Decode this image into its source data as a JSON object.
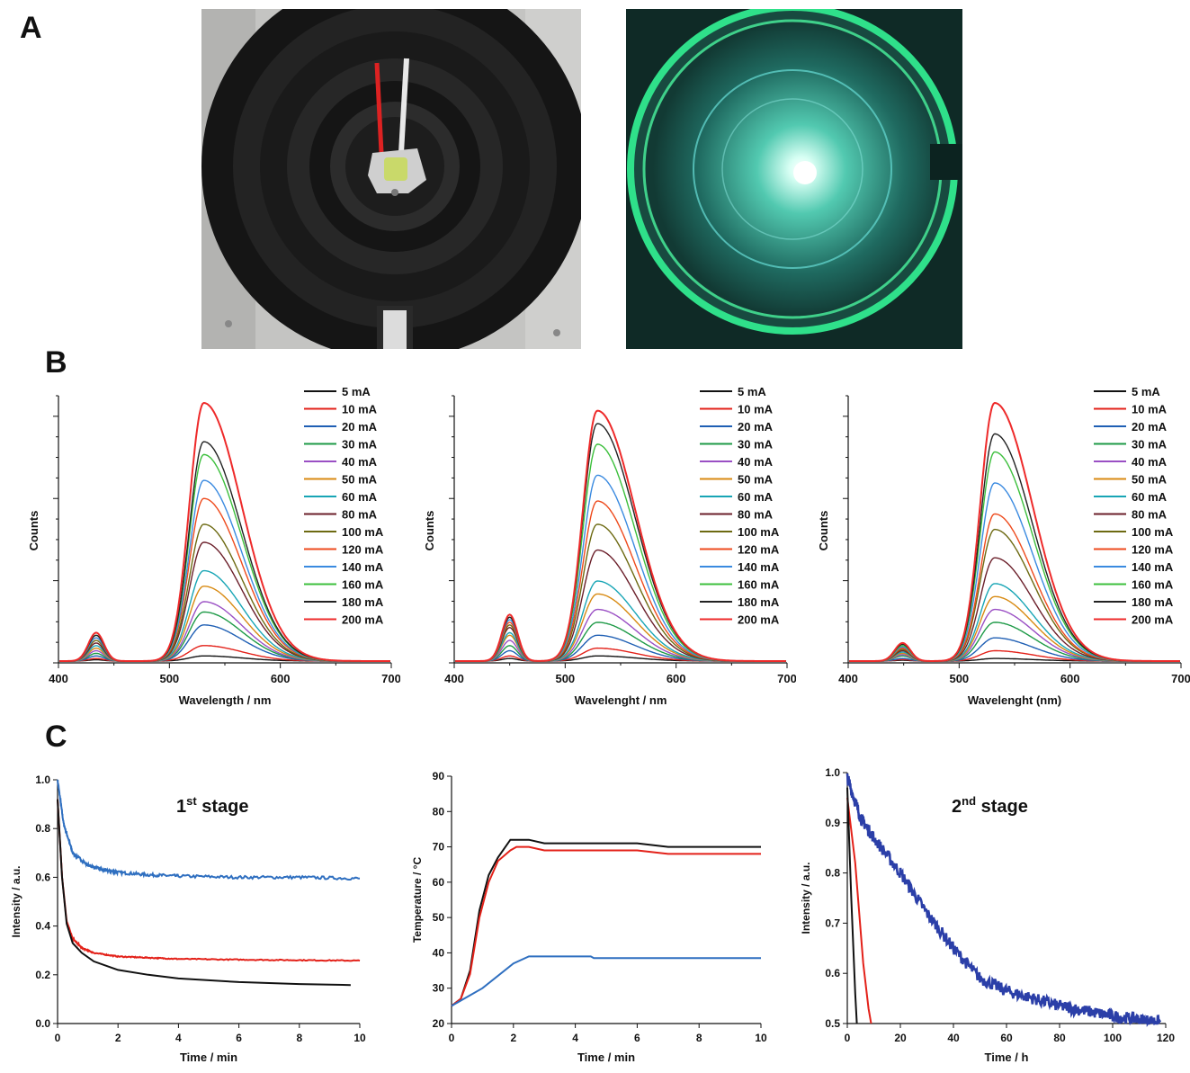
{
  "panels": {
    "a": "A",
    "b": "B",
    "c": "C"
  },
  "photos": {
    "left": {
      "name": "led-in-reactor-photo",
      "colors": {
        "housing": "#1a1a1a",
        "led": "#c9d96a",
        "bench": "#bdbdbd"
      }
    },
    "right": {
      "name": "reactor-illuminated-photo",
      "colors": {
        "glow": "#2fe08a",
        "core": "#ffffff",
        "background": "#0f2a26"
      }
    }
  },
  "chart_data": [
    {
      "id": "b1",
      "type": "line",
      "xlabel": "Wavelength / nm",
      "ylabel": "Counts",
      "xlim": [
        400,
        700
      ],
      "xticks": [
        400,
        500,
        600,
        700
      ],
      "peak1_nm": 434,
      "peak2_nm": 531,
      "legend_position": "top-right",
      "series": [
        {
          "name": "5 mA",
          "color": "#111111",
          "peak": 0.02,
          "blue": 0.005
        },
        {
          "name": "10 mA",
          "color": "#e32119",
          "peak": 0.06,
          "blue": 0.01
        },
        {
          "name": "20 mA",
          "color": "#1f5fb4",
          "peak": 0.14,
          "blue": 0.02
        },
        {
          "name": "30 mA",
          "color": "#1e9a47",
          "peak": 0.19,
          "blue": 0.03
        },
        {
          "name": "40 mA",
          "color": "#9a4fc4",
          "peak": 0.23,
          "blue": 0.04
        },
        {
          "name": "50 mA",
          "color": "#d88a12",
          "peak": 0.29,
          "blue": 0.05
        },
        {
          "name": "60 mA",
          "color": "#18a5b5",
          "peak": 0.35,
          "blue": 0.06
        },
        {
          "name": "80 mA",
          "color": "#6b1f2a",
          "peak": 0.46,
          "blue": 0.07
        },
        {
          "name": "100 mA",
          "color": "#6d6a12",
          "peak": 0.53,
          "blue": 0.08
        },
        {
          "name": "120 mA",
          "color": "#ee4a1c",
          "peak": 0.63,
          "blue": 0.09
        },
        {
          "name": "140 mA",
          "color": "#3a8ae0",
          "peak": 0.7,
          "blue": 0.09
        },
        {
          "name": "160 mA",
          "color": "#3cbf3c",
          "peak": 0.8,
          "blue": 0.1
        },
        {
          "name": "180 mA",
          "color": "#222222",
          "peak": 0.85,
          "blue": 0.1
        },
        {
          "name": "200 mA",
          "color": "#ee2a2a",
          "peak": 1.0,
          "blue": 0.11
        }
      ]
    },
    {
      "id": "b2",
      "type": "line",
      "xlabel": "Wavelenght / nm",
      "ylabel": "Counts",
      "xlim": [
        400,
        700
      ],
      "xticks": [
        400,
        500,
        600,
        700
      ],
      "peak1_nm": 450,
      "peak2_nm": 529,
      "legend_position": "top-right",
      "series": [
        {
          "name": "5 mA",
          "color": "#111111",
          "peak": 0.02,
          "blue": 0.01
        },
        {
          "name": "10 mA",
          "color": "#e32119",
          "peak": 0.05,
          "blue": 0.02
        },
        {
          "name": "20 mA",
          "color": "#1f5fb4",
          "peak": 0.1,
          "blue": 0.04
        },
        {
          "name": "30 mA",
          "color": "#1e9a47",
          "peak": 0.15,
          "blue": 0.06
        },
        {
          "name": "40 mA",
          "color": "#9a4fc4",
          "peak": 0.2,
          "blue": 0.08
        },
        {
          "name": "50 mA",
          "color": "#d88a12",
          "peak": 0.26,
          "blue": 0.1
        },
        {
          "name": "60 mA",
          "color": "#18a5b5",
          "peak": 0.31,
          "blue": 0.11
        },
        {
          "name": "80 mA",
          "color": "#6b1f2a",
          "peak": 0.43,
          "blue": 0.13
        },
        {
          "name": "100 mA",
          "color": "#6d6a12",
          "peak": 0.53,
          "blue": 0.14
        },
        {
          "name": "120 mA",
          "color": "#ee4a1c",
          "peak": 0.62,
          "blue": 0.15
        },
        {
          "name": "140 mA",
          "color": "#3a8ae0",
          "peak": 0.72,
          "blue": 0.16
        },
        {
          "name": "160 mA",
          "color": "#3cbf3c",
          "peak": 0.84,
          "blue": 0.17
        },
        {
          "name": "180 mA",
          "color": "#222222",
          "peak": 0.92,
          "blue": 0.17
        },
        {
          "name": "200 mA",
          "color": "#ee2a2a",
          "peak": 0.97,
          "blue": 0.18
        }
      ]
    },
    {
      "id": "b3",
      "type": "line",
      "xlabel": "Wavelenght (nm)",
      "ylabel": "Counts",
      "xlim": [
        400,
        700
      ],
      "xticks": [
        400,
        500,
        600,
        700
      ],
      "peak1_nm": 449,
      "peak2_nm": 532,
      "legend_position": "top-right",
      "series": [
        {
          "name": "5 mA",
          "color": "#111111",
          "peak": 0.01,
          "blue": 0.003
        },
        {
          "name": "10 mA",
          "color": "#e32119",
          "peak": 0.04,
          "blue": 0.006
        },
        {
          "name": "20 mA",
          "color": "#1f5fb4",
          "peak": 0.09,
          "blue": 0.01
        },
        {
          "name": "30 mA",
          "color": "#1e9a47",
          "peak": 0.15,
          "blue": 0.02
        },
        {
          "name": "40 mA",
          "color": "#9a4fc4",
          "peak": 0.2,
          "blue": 0.025
        },
        {
          "name": "50 mA",
          "color": "#d88a12",
          "peak": 0.25,
          "blue": 0.03
        },
        {
          "name": "60 mA",
          "color": "#18a5b5",
          "peak": 0.3,
          "blue": 0.035
        },
        {
          "name": "80 mA",
          "color": "#6b1f2a",
          "peak": 0.4,
          "blue": 0.04
        },
        {
          "name": "100 mA",
          "color": "#6d6a12",
          "peak": 0.51,
          "blue": 0.045
        },
        {
          "name": "120 mA",
          "color": "#ee4a1c",
          "peak": 0.57,
          "blue": 0.05
        },
        {
          "name": "140 mA",
          "color": "#3a8ae0",
          "peak": 0.69,
          "blue": 0.055
        },
        {
          "name": "160 mA",
          "color": "#3cbf3c",
          "peak": 0.81,
          "blue": 0.06
        },
        {
          "name": "180 mA",
          "color": "#222222",
          "peak": 0.88,
          "blue": 0.065
        },
        {
          "name": "200 mA",
          "color": "#ee2a2a",
          "peak": 1.0,
          "blue": 0.07
        }
      ]
    },
    {
      "id": "c1",
      "type": "line",
      "annotation": "1st stage",
      "annotation_main": "1",
      "annotation_sup": "st",
      "annotation_tail": " stage",
      "xlabel": "Time / min",
      "ylabel": "Intensity / a.u.",
      "xlim": [
        0,
        10
      ],
      "ylim": [
        0,
        1.0
      ],
      "xticks": [
        0,
        2,
        4,
        6,
        8,
        10
      ],
      "yticks": [
        0.0,
        0.2,
        0.4,
        0.6,
        0.8,
        1.0
      ],
      "ytick_labels": [
        "0.0",
        "0.2",
        "0.4",
        "0.6",
        "0.8",
        "1.0"
      ],
      "series": [
        {
          "color": "#2f6fc0",
          "x": [
            0,
            0.2,
            0.5,
            1,
            1.5,
            2,
            3,
            4,
            6,
            8,
            10
          ],
          "y": [
            1.0,
            0.82,
            0.7,
            0.65,
            0.63,
            0.62,
            0.61,
            0.605,
            0.6,
            0.6,
            0.595
          ],
          "noise": 0.006
        },
        {
          "color": "#e32119",
          "x": [
            0,
            0.15,
            0.3,
            0.5,
            0.8,
            1.2,
            2,
            3,
            4,
            6,
            8,
            10
          ],
          "y": [
            0.92,
            0.6,
            0.42,
            0.35,
            0.31,
            0.29,
            0.275,
            0.27,
            0.265,
            0.262,
            0.26,
            0.258
          ],
          "noise": 0.002
        },
        {
          "color": "#111111",
          "x": [
            0,
            0.15,
            0.3,
            0.5,
            0.8,
            1.2,
            2,
            3,
            4,
            6,
            8,
            9.7
          ],
          "y": [
            0.92,
            0.6,
            0.41,
            0.33,
            0.29,
            0.255,
            0.22,
            0.2,
            0.185,
            0.17,
            0.162,
            0.158
          ],
          "noise": 0.0
        }
      ]
    },
    {
      "id": "c2",
      "type": "line",
      "xlabel": "Time / min",
      "ylabel": "Temperature / °C",
      "xlim": [
        0,
        10
      ],
      "ylim": [
        20,
        90
      ],
      "xticks": [
        0,
        2,
        4,
        6,
        8,
        10
      ],
      "yticks": [
        20,
        30,
        40,
        50,
        60,
        70,
        80,
        90
      ],
      "ytick_labels": [
        "20",
        "30",
        "40",
        "50",
        "60",
        "70",
        "80",
        "90"
      ],
      "series": [
        {
          "color": "#111111",
          "x": [
            0,
            0.3,
            0.6,
            0.9,
            1.2,
            1.5,
            1.9,
            2.0,
            2.5,
            3,
            6,
            7,
            10
          ],
          "y": [
            25,
            27,
            35,
            52,
            62,
            67,
            72,
            72,
            72,
            71,
            71,
            70,
            70
          ],
          "noise": 0
        },
        {
          "color": "#e32119",
          "x": [
            0,
            0.3,
            0.6,
            0.9,
            1.2,
            1.5,
            1.9,
            2.1,
            2.5,
            3,
            6,
            7,
            10
          ],
          "y": [
            25,
            27,
            34,
            50,
            60,
            66,
            69,
            70,
            70,
            69,
            69,
            68,
            68
          ],
          "noise": 0
        },
        {
          "color": "#2f6fc0",
          "x": [
            0,
            1.0,
            2.0,
            2.5,
            4.5,
            4.6,
            10
          ],
          "y": [
            25,
            30,
            37,
            39,
            39,
            38.5,
            38.5
          ],
          "noise": 0
        }
      ]
    },
    {
      "id": "c3",
      "type": "line",
      "annotation": "2nd stage",
      "annotation_main": "2",
      "annotation_sup": "nd",
      "annotation_tail": " stage",
      "xlabel": "Time / h",
      "ylabel": "Intensity / a.u.",
      "xlim": [
        0,
        120
      ],
      "ylim": [
        0.5,
        1.0
      ],
      "xticks": [
        0,
        20,
        40,
        60,
        80,
        100,
        120
      ],
      "yticks": [
        0.5,
        0.6,
        0.7,
        0.8,
        0.9,
        1.0
      ],
      "ytick_labels": [
        "0.5",
        "0.6",
        "0.7",
        "0.8",
        "0.9",
        "1.0"
      ],
      "series": [
        {
          "color": "#2b3fa8",
          "x": [
            0,
            5,
            10,
            20,
            30,
            40,
            50,
            60,
            70,
            80,
            90,
            100,
            110,
            118
          ],
          "y": [
            0.99,
            0.91,
            0.87,
            0.8,
            0.72,
            0.65,
            0.59,
            0.565,
            0.55,
            0.535,
            0.525,
            0.515,
            0.508,
            0.503
          ],
          "noise": 0.012
        },
        {
          "color": "#e32119",
          "x": [
            0,
            3,
            6,
            8,
            9
          ],
          "y": [
            0.95,
            0.82,
            0.62,
            0.53,
            0.5
          ],
          "noise": 0
        },
        {
          "color": "#111111",
          "x": [
            0,
            1.5,
            3,
            3.6
          ],
          "y": [
            0.97,
            0.75,
            0.56,
            0.5
          ],
          "noise": 0
        }
      ]
    }
  ]
}
